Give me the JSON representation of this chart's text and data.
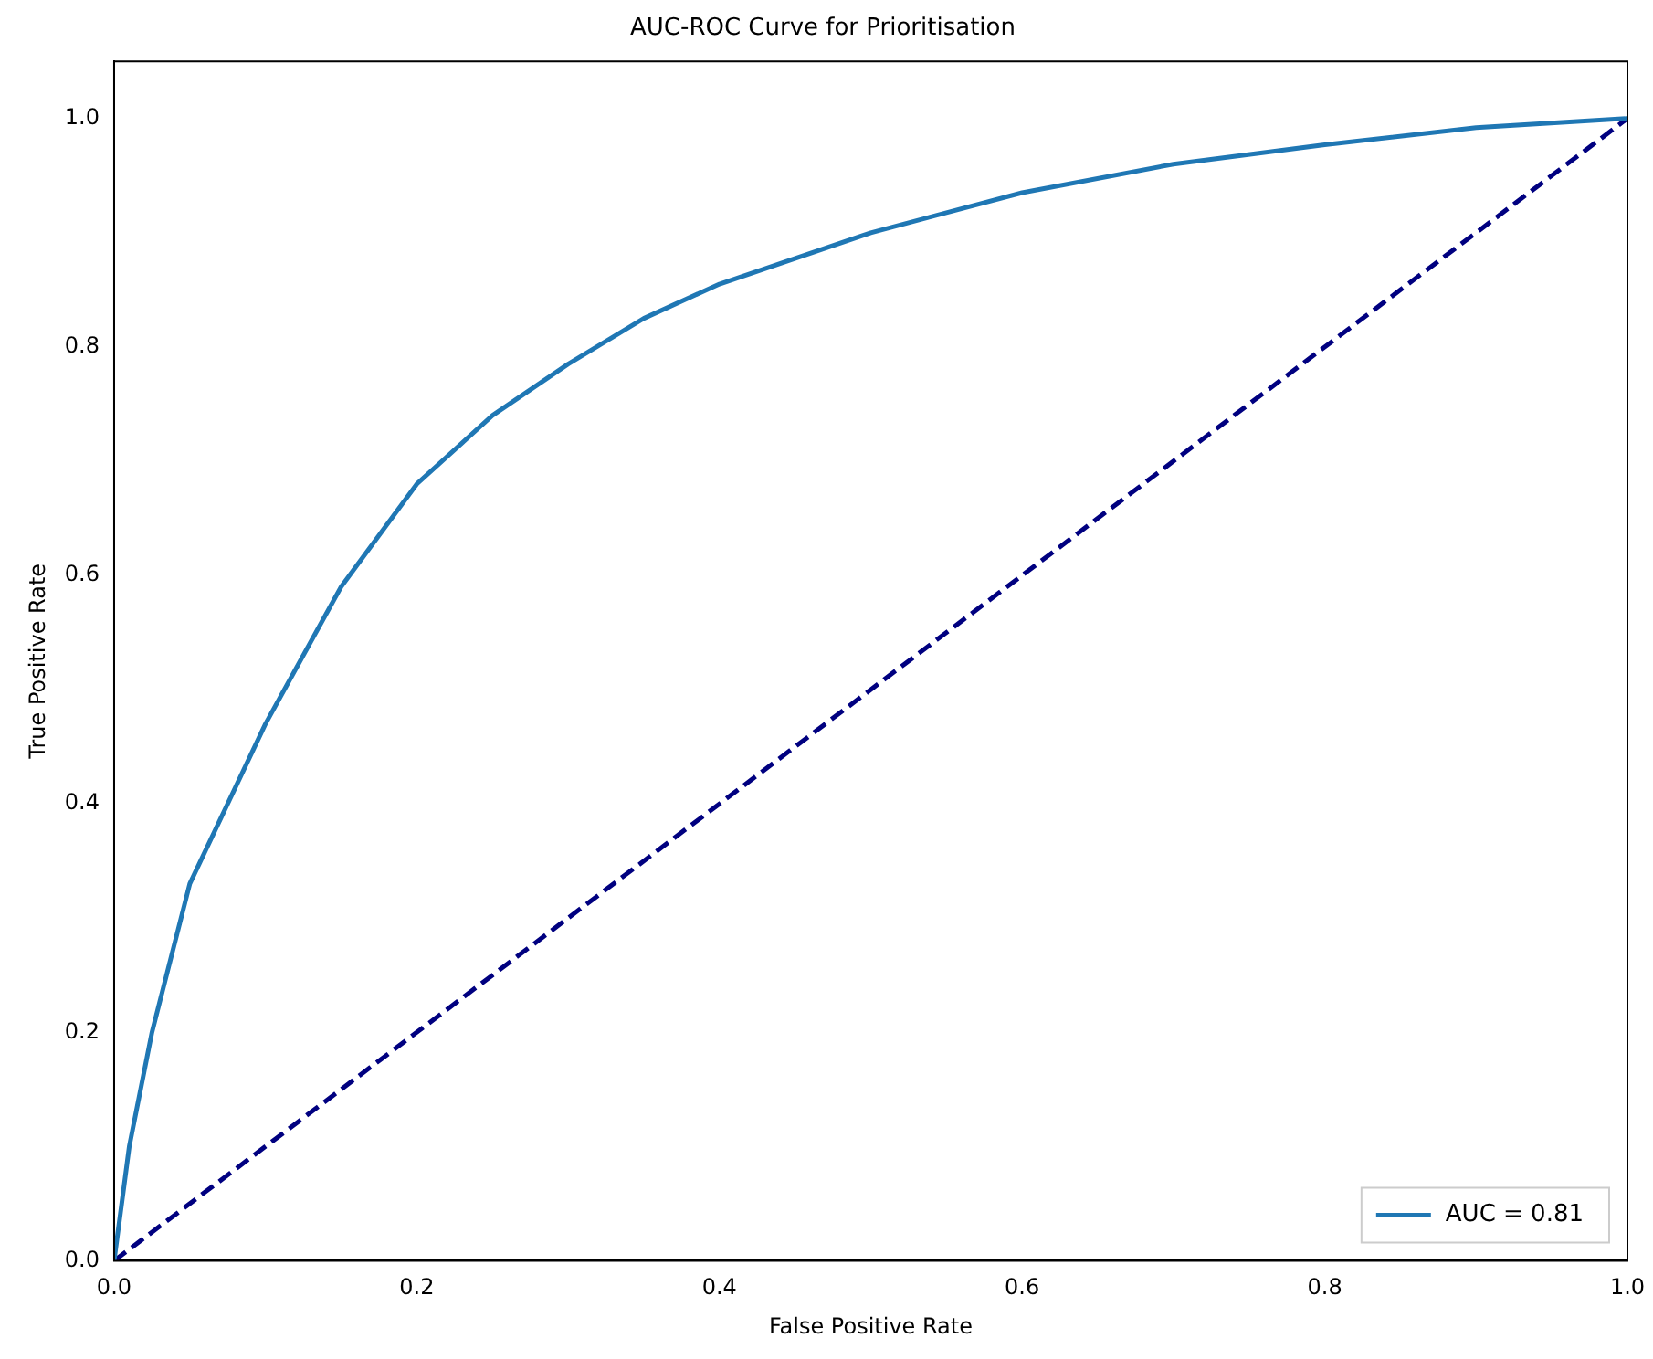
{
  "chart_data": {
    "type": "line",
    "title": "AUC-ROC Curve for Prioritisation",
    "xlabel": "False Positive Rate",
    "ylabel": "True Positive Rate",
    "xlim": [
      0,
      1
    ],
    "ylim": [
      0,
      1.05
    ],
    "xticks": [
      {
        "value": 0,
        "label": "0.0"
      },
      {
        "value": 0.2,
        "label": "0.2"
      },
      {
        "value": 0.4,
        "label": "0.4"
      },
      {
        "value": 0.6,
        "label": "0.6"
      },
      {
        "value": 0.8,
        "label": "0.8"
      },
      {
        "value": 1,
        "label": "1.0"
      }
    ],
    "yticks": [
      {
        "value": 0,
        "label": "0.0"
      },
      {
        "value": 0.2,
        "label": "0.2"
      },
      {
        "value": 0.4,
        "label": "0.4"
      },
      {
        "value": 0.6,
        "label": "0.6"
      },
      {
        "value": 0.8,
        "label": "0.8"
      },
      {
        "value": 1,
        "label": "1.0"
      }
    ],
    "grid": false,
    "legend": "bottom right",
    "marker": "none",
    "series": [
      {
        "name": "AUC = 0.81",
        "color": "#1f77b4",
        "line_style": "solid",
        "x": [
          0,
          0.01,
          0.025,
          0.05,
          0.1,
          0.15,
          0.2,
          0.25,
          0.3,
          0.35,
          0.4,
          0.5,
          0.6,
          0.7,
          0.8,
          0.9,
          1
        ],
        "values": [
          0,
          0.1,
          0.2,
          0.33,
          0.47,
          0.59,
          0.68,
          0.74,
          0.785,
          0.825,
          0.855,
          0.9,
          0.935,
          0.96,
          0.977,
          0.992,
          1
        ]
      },
      {
        "color": "#000080",
        "line_style": "dashed",
        "x": [
          0,
          1
        ],
        "values": [
          0,
          1
        ]
      }
    ]
  }
}
